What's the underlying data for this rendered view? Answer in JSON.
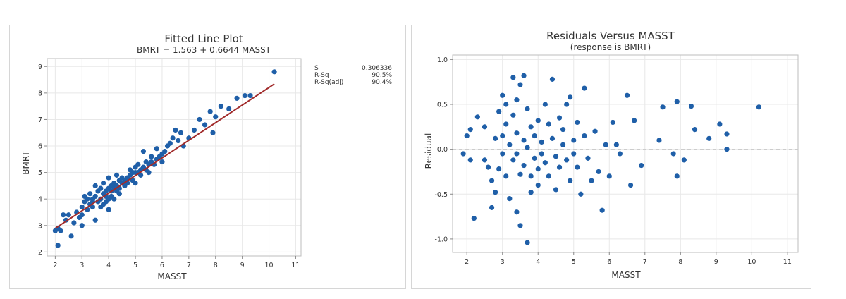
{
  "colors": {
    "point": "#1f5fa8",
    "fit_line": "#a12b2b",
    "grid": "#e8e8e8",
    "zero_line": "#c8c8c8"
  },
  "chart_data": [
    {
      "type": "scatter",
      "title": "Fitted Line Plot",
      "subtitle": "BMRT = 1.563 + 0.6644 MASST",
      "xlabel": "MASST",
      "ylabel": "BMRT",
      "xlim": [
        1.7,
        11.2
      ],
      "ylim": [
        1.85,
        9.3
      ],
      "xticks": [
        2,
        3,
        4,
        5,
        6,
        7,
        8,
        9,
        10,
        11
      ],
      "yticks": [
        2,
        3,
        4,
        5,
        6,
        7,
        8,
        9
      ],
      "grid": true,
      "fit": {
        "intercept": 1.563,
        "slope": 0.6644,
        "x_range": [
          2.0,
          10.2
        ]
      },
      "stats": [
        {
          "label": "S",
          "value": "0.306336"
        },
        {
          "label": "R-Sq",
          "value": "90.5%"
        },
        {
          "label": "R-Sq(adj)",
          "value": "90.4%"
        }
      ],
      "points": [
        [
          2.0,
          2.8
        ],
        [
          2.1,
          2.9
        ],
        [
          2.1,
          2.25
        ],
        [
          2.2,
          2.8
        ],
        [
          2.3,
          3.4
        ],
        [
          2.4,
          3.2
        ],
        [
          2.5,
          3.4
        ],
        [
          2.6,
          2.6
        ],
        [
          2.7,
          3.1
        ],
        [
          2.8,
          3.5
        ],
        [
          2.9,
          3.3
        ],
        [
          3.0,
          3.7
        ],
        [
          3.0,
          3.4
        ],
        [
          3.0,
          3.0
        ],
        [
          3.1,
          3.9
        ],
        [
          3.1,
          4.1
        ],
        [
          3.2,
          3.6
        ],
        [
          3.2,
          4.0
        ],
        [
          3.3,
          3.8
        ],
        [
          3.3,
          4.2
        ],
        [
          3.4,
          3.9
        ],
        [
          3.4,
          4.0
        ],
        [
          3.4,
          3.7
        ],
        [
          3.5,
          4.1
        ],
        [
          3.5,
          4.5
        ],
        [
          3.5,
          3.2
        ],
        [
          3.6,
          4.3
        ],
        [
          3.6,
          3.9
        ],
        [
          3.7,
          4.0
        ],
        [
          3.7,
          3.7
        ],
        [
          3.7,
          4.4
        ],
        [
          3.8,
          4.2
        ],
        [
          3.8,
          4.6
        ],
        [
          3.8,
          3.8
        ],
        [
          3.9,
          4.1
        ],
        [
          3.9,
          4.3
        ],
        [
          3.9,
          3.9
        ],
        [
          4.0,
          4.4
        ],
        [
          4.0,
          4.0
        ],
        [
          4.0,
          4.8
        ],
        [
          4.0,
          3.6
        ],
        [
          4.1,
          4.3
        ],
        [
          4.1,
          4.5
        ],
        [
          4.1,
          4.1
        ],
        [
          4.2,
          4.4
        ],
        [
          4.2,
          4.6
        ],
        [
          4.2,
          4.0
        ],
        [
          4.3,
          4.5
        ],
        [
          4.3,
          4.3
        ],
        [
          4.3,
          4.9
        ],
        [
          4.4,
          4.4
        ],
        [
          4.4,
          4.7
        ],
        [
          4.4,
          4.2
        ],
        [
          4.5,
          4.6
        ],
        [
          4.5,
          4.8
        ],
        [
          4.6,
          4.5
        ],
        [
          4.6,
          4.7
        ],
        [
          4.7,
          4.8
        ],
        [
          4.7,
          4.6
        ],
        [
          4.8,
          4.9
        ],
        [
          4.8,
          5.1
        ],
        [
          4.9,
          4.7
        ],
        [
          4.9,
          5.0
        ],
        [
          5.0,
          5.0
        ],
        [
          5.0,
          5.2
        ],
        [
          5.0,
          4.6
        ],
        [
          5.1,
          5.0
        ],
        [
          5.1,
          5.3
        ],
        [
          5.2,
          4.9
        ],
        [
          5.2,
          5.1
        ],
        [
          5.3,
          5.2
        ],
        [
          5.3,
          5.8
        ],
        [
          5.4,
          5.1
        ],
        [
          5.4,
          5.4
        ],
        [
          5.5,
          5.3
        ],
        [
          5.5,
          5.0
        ],
        [
          5.6,
          5.4
        ],
        [
          5.6,
          5.6
        ],
        [
          5.7,
          5.3
        ],
        [
          5.8,
          5.5
        ],
        [
          5.8,
          5.9
        ],
        [
          5.9,
          5.6
        ],
        [
          6.0,
          5.7
        ],
        [
          6.0,
          5.4
        ],
        [
          6.1,
          5.8
        ],
        [
          6.2,
          6.0
        ],
        [
          6.3,
          6.1
        ],
        [
          6.4,
          6.3
        ],
        [
          6.5,
          6.6
        ],
        [
          6.6,
          6.2
        ],
        [
          6.7,
          6.5
        ],
        [
          6.8,
          6.0
        ],
        [
          7.0,
          6.3
        ],
        [
          7.2,
          6.6
        ],
        [
          7.4,
          7.0
        ],
        [
          7.6,
          6.8
        ],
        [
          7.8,
          7.3
        ],
        [
          7.9,
          6.5
        ],
        [
          8.0,
          7.1
        ],
        [
          8.2,
          7.5
        ],
        [
          8.5,
          7.4
        ],
        [
          8.8,
          7.8
        ],
        [
          9.1,
          7.9
        ],
        [
          9.3,
          7.9
        ],
        [
          10.2,
          8.8
        ]
      ]
    },
    {
      "type": "scatter",
      "title": "Residuals Versus MASST",
      "subtitle": "(response is BMRT)",
      "xlabel": "MASST",
      "ylabel": "Residual",
      "xlim": [
        1.6,
        11.3
      ],
      "ylim": [
        -1.15,
        1.05
      ],
      "xticks": [
        2,
        3,
        4,
        5,
        6,
        7,
        8,
        9,
        10,
        11
      ],
      "yticks": [
        -1.0,
        -0.5,
        0.0,
        0.5,
        1.0
      ],
      "ytick_labels": [
        "-1.0",
        "-0.5",
        "0.0",
        "0.5",
        "1.0"
      ],
      "grid": true,
      "reference_line": 0,
      "points": [
        [
          1.9,
          -0.05
        ],
        [
          2.0,
          0.15
        ],
        [
          2.1,
          0.22
        ],
        [
          2.1,
          -0.12
        ],
        [
          2.2,
          -0.77
        ],
        [
          2.3,
          0.36
        ],
        [
          2.5,
          0.25
        ],
        [
          2.5,
          -0.12
        ],
        [
          2.6,
          -0.2
        ],
        [
          2.7,
          -0.65
        ],
        [
          2.7,
          -0.35
        ],
        [
          2.8,
          0.12
        ],
        [
          2.8,
          -0.48
        ],
        [
          2.9,
          0.42
        ],
        [
          2.9,
          -0.22
        ],
        [
          3.0,
          0.6
        ],
        [
          3.0,
          0.15
        ],
        [
          3.0,
          -0.05
        ],
        [
          3.1,
          0.5
        ],
        [
          3.1,
          0.28
        ],
        [
          3.1,
          -0.3
        ],
        [
          3.2,
          0.05
        ],
        [
          3.2,
          -0.55
        ],
        [
          3.3,
          0.38
        ],
        [
          3.3,
          0.8
        ],
        [
          3.3,
          -0.12
        ],
        [
          3.4,
          0.55
        ],
        [
          3.4,
          0.18
        ],
        [
          3.4,
          -0.05
        ],
        [
          3.4,
          -0.7
        ],
        [
          3.5,
          0.72
        ],
        [
          3.5,
          -0.28
        ],
        [
          3.5,
          -0.85
        ],
        [
          3.6,
          0.82
        ],
        [
          3.6,
          0.1
        ],
        [
          3.6,
          -0.18
        ],
        [
          3.7,
          -1.04
        ],
        [
          3.7,
          0.45
        ],
        [
          3.7,
          0.02
        ],
        [
          3.8,
          -0.3
        ],
        [
          3.8,
          0.25
        ],
        [
          3.8,
          -0.48
        ],
        [
          3.9,
          0.15
        ],
        [
          3.9,
          -0.1
        ],
        [
          4.0,
          0.32
        ],
        [
          4.0,
          -0.22
        ],
        [
          4.0,
          -0.4
        ],
        [
          4.1,
          0.08
        ],
        [
          4.1,
          -0.05
        ],
        [
          4.2,
          0.5
        ],
        [
          4.2,
          -0.15
        ],
        [
          4.3,
          0.28
        ],
        [
          4.3,
          -0.3
        ],
        [
          4.4,
          0.78
        ],
        [
          4.4,
          0.12
        ],
        [
          4.5,
          -0.08
        ],
        [
          4.5,
          -0.45
        ],
        [
          4.6,
          0.35
        ],
        [
          4.6,
          -0.2
        ],
        [
          4.7,
          0.22
        ],
        [
          4.7,
          0.05
        ],
        [
          4.8,
          0.5
        ],
        [
          4.8,
          -0.12
        ],
        [
          4.9,
          0.58
        ],
        [
          4.9,
          -0.35
        ],
        [
          5.0,
          0.1
        ],
        [
          5.0,
          -0.05
        ],
        [
          5.1,
          -0.2
        ],
        [
          5.1,
          0.3
        ],
        [
          5.2,
          -0.5
        ],
        [
          5.3,
          0.68
        ],
        [
          5.3,
          0.15
        ],
        [
          5.4,
          -0.1
        ],
        [
          5.5,
          -0.35
        ],
        [
          5.6,
          0.2
        ],
        [
          5.7,
          -0.25
        ],
        [
          5.8,
          -0.68
        ],
        [
          5.9,
          0.05
        ],
        [
          6.0,
          -0.3
        ],
        [
          6.1,
          0.3
        ],
        [
          6.2,
          0.05
        ],
        [
          6.3,
          -0.05
        ],
        [
          6.5,
          0.6
        ],
        [
          6.6,
          -0.4
        ],
        [
          6.7,
          0.32
        ],
        [
          6.9,
          -0.18
        ],
        [
          7.4,
          0.1
        ],
        [
          7.5,
          0.47
        ],
        [
          7.8,
          -0.05
        ],
        [
          7.9,
          -0.3
        ],
        [
          7.9,
          0.53
        ],
        [
          8.1,
          -0.12
        ],
        [
          8.3,
          0.48
        ],
        [
          8.4,
          0.22
        ],
        [
          8.8,
          0.12
        ],
        [
          9.1,
          0.28
        ],
        [
          9.3,
          0.17
        ],
        [
          9.3,
          0.0
        ],
        [
          10.2,
          0.47
        ]
      ]
    }
  ]
}
